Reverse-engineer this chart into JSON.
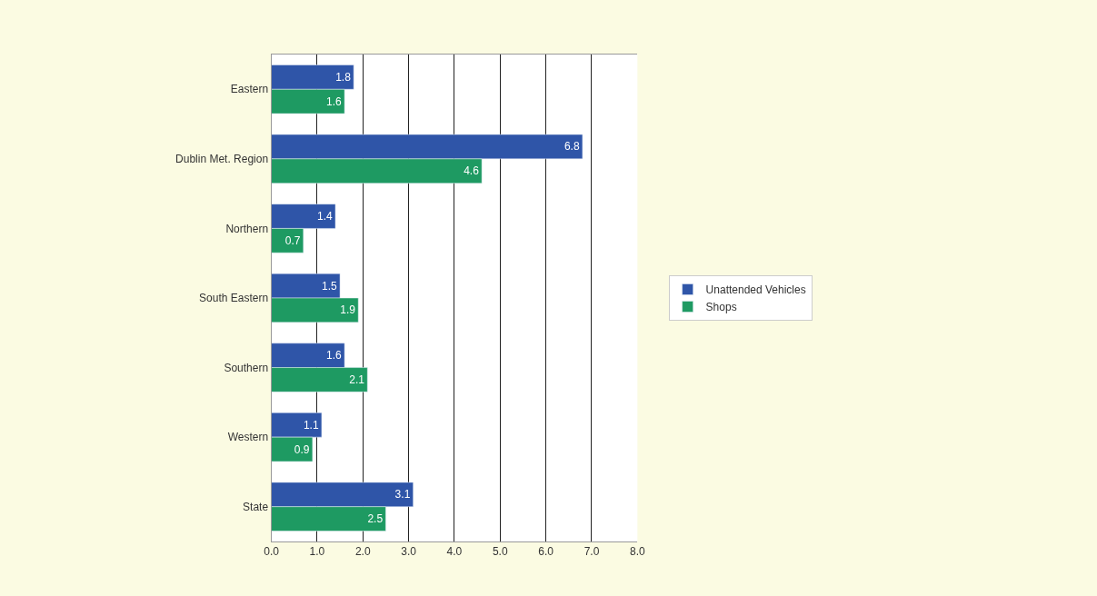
{
  "chart_data": {
    "type": "bar",
    "orientation": "horizontal",
    "categories": [
      "Eastern",
      "Dublin Met. Region",
      "Northern",
      "South Eastern",
      "Southern",
      "Western",
      "State"
    ],
    "series": [
      {
        "name": "Unattended Vehicles",
        "color": "#2f55a8",
        "values": [
          1.8,
          6.8,
          1.4,
          1.5,
          1.6,
          1.1,
          3.1
        ]
      },
      {
        "name": "Shops",
        "color": "#1e9a62",
        "values": [
          1.6,
          4.6,
          0.7,
          1.9,
          2.1,
          0.9,
          2.5
        ]
      }
    ],
    "xlim": [
      0,
      8
    ],
    "xticks": [
      {
        "value": 0,
        "label": "0.0"
      },
      {
        "value": 1,
        "label": "1.0"
      },
      {
        "value": 2,
        "label": "2.0"
      },
      {
        "value": 3,
        "label": "3.0"
      },
      {
        "value": 4,
        "label": "4.0"
      },
      {
        "value": 5,
        "label": "5.0"
      },
      {
        "value": 6,
        "label": "6.0"
      },
      {
        "value": 7,
        "label": "7.0"
      },
      {
        "value": 8,
        "label": "8.0"
      }
    ],
    "grid": "x",
    "legend": "right",
    "data_labels": true
  }
}
